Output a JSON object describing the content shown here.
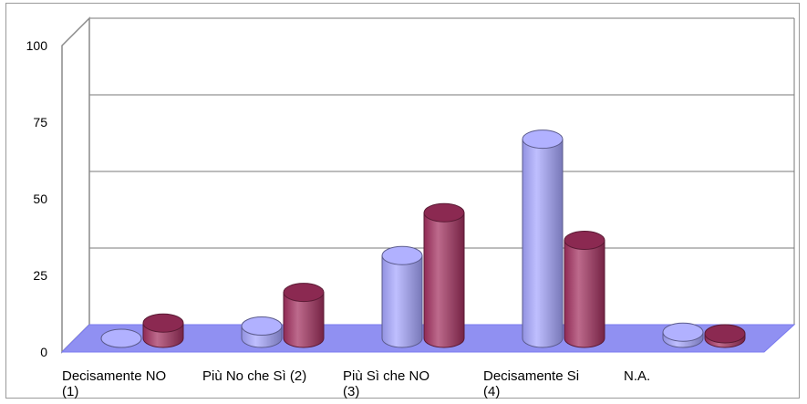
{
  "chart_data": {
    "type": "bar",
    "style": "3d-cylinder",
    "categories": [
      [
        "Decisamente NO",
        "(1)"
      ],
      [
        "Più No che Sì (2)"
      ],
      [
        "Più Sì che NO",
        "(3)"
      ],
      [
        "Decisamente Si",
        "(4)"
      ],
      [
        "N.A."
      ]
    ],
    "series": [
      {
        "values": [
          0,
          4,
          27,
          65,
          2
        ],
        "color": "#a6a6ff"
      },
      {
        "values": [
          5,
          15,
          41,
          32,
          1.5
        ],
        "color": "#a3305f"
      }
    ],
    "ylim": [
      0,
      100
    ],
    "yticks": [
      0,
      25,
      50,
      75,
      100
    ],
    "grid": true,
    "floor_color": "#9090f2",
    "legend": "none"
  }
}
